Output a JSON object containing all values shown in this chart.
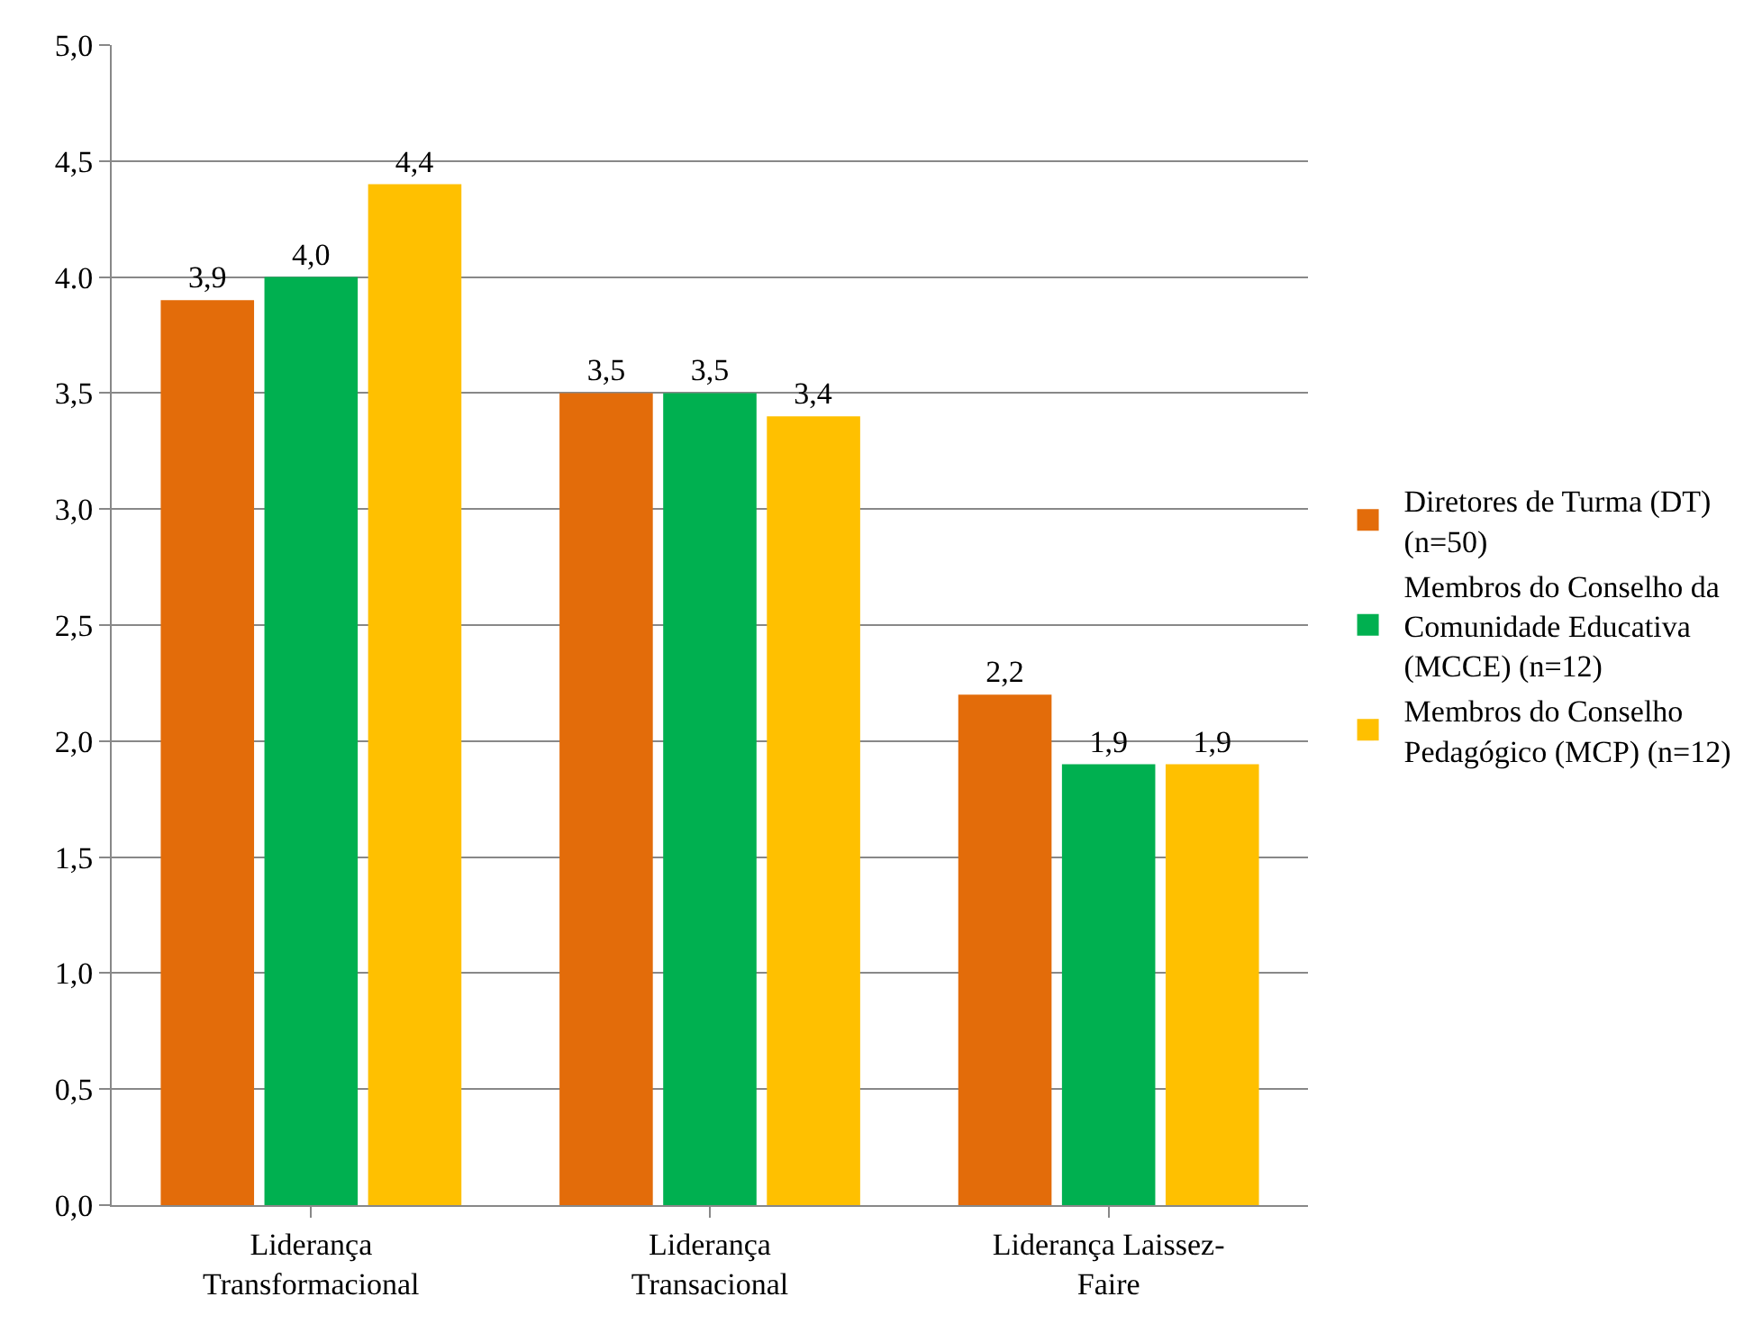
{
  "chart_data": {
    "type": "bar",
    "categories": [
      "Liderança Transformacional",
      "Liderança Transacional",
      "Liderança Laissez-Faire"
    ],
    "series": [
      {
        "name": "Diretores de Turma (DT) (n=50)",
        "color": "#e36c0a",
        "values": [
          3.9,
          3.5,
          2.2
        ],
        "value_labels": [
          "3,9",
          "3,5",
          "2,2"
        ]
      },
      {
        "name": "Membros do Conselho da Comunidade Educativa (MCCE) (n=12)",
        "color": "#00b050",
        "values": [
          4.0,
          3.5,
          1.9
        ],
        "value_labels": [
          "4,0",
          "3,5",
          "1,9"
        ]
      },
      {
        "name": "Membros do Conselho Pedagógico (MCP) (n=12)",
        "color": "#ffc000",
        "values": [
          4.4,
          3.4,
          1.9
        ],
        "value_labels": [
          "4,4",
          "3,4",
          "1,9"
        ]
      }
    ],
    "ylim": [
      0,
      5
    ],
    "yticks": [
      {
        "value": 0,
        "label": "0,0"
      },
      {
        "value": 0.5,
        "label": "0,5"
      },
      {
        "value": 1,
        "label": "1,0"
      },
      {
        "value": 1.5,
        "label": "1,5"
      },
      {
        "value": 2,
        "label": "2,0"
      },
      {
        "value": 2.5,
        "label": "2,5"
      },
      {
        "value": 3,
        "label": "3,0"
      },
      {
        "value": 3.5,
        "label": "3,5"
      },
      {
        "value": 4,
        "label": "4.0"
      },
      {
        "value": 4.5,
        "label": "4,5"
      },
      {
        "value": 5,
        "label": "5,0"
      }
    ],
    "grid": "y",
    "legend": "right"
  }
}
